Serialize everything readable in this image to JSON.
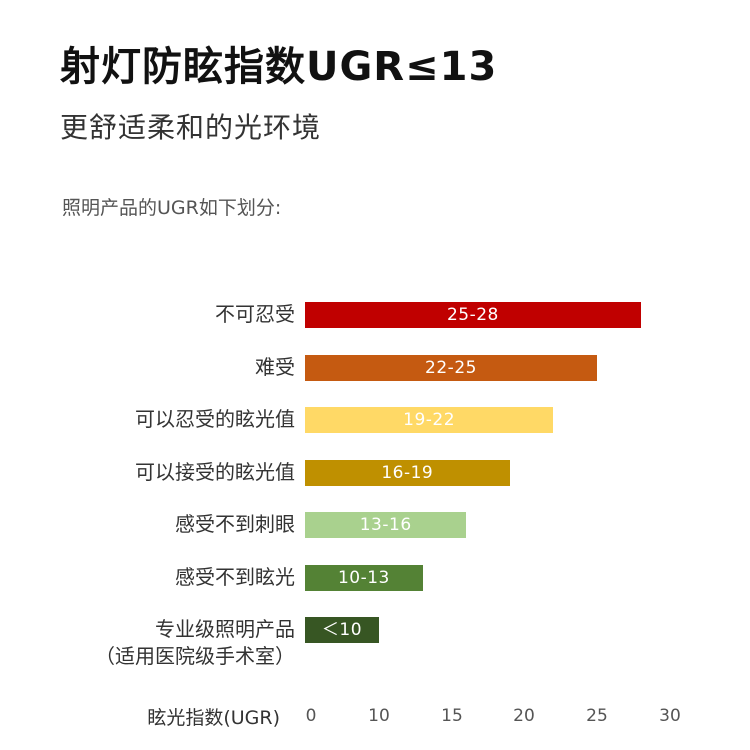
{
  "header": {
    "title": "射灯防眩指数UGR≤13",
    "subtitle": "更舒适柔和的光环境",
    "intro": "照明产品的UGR如下划分:"
  },
  "chart_data": {
    "type": "bar",
    "orientation": "horizontal",
    "title": "",
    "xlabel": "眩光指数(UGR)",
    "ylabel": "",
    "xlim": [
      0,
      30
    ],
    "x_ticks": [
      "0",
      "10",
      "15",
      "20",
      "25",
      "30"
    ],
    "x_tick_values": [
      0,
      10,
      15,
      20,
      25,
      30
    ],
    "grid": false,
    "legend": "none",
    "bars": [
      {
        "category": "不可忍受",
        "category_line2": "",
        "range_label": "25-28",
        "value": 28,
        "color": "#c00000"
      },
      {
        "category": "难受",
        "category_line2": "",
        "range_label": "22-25",
        "value": 25,
        "color": "#c55a11"
      },
      {
        "category": "可以忍受的眩光值",
        "category_line2": "",
        "range_label": "19-22",
        "value": 22,
        "color": "#ffd966"
      },
      {
        "category": "可以接受的眩光值",
        "category_line2": "",
        "range_label": "16-19",
        "value": 19,
        "color": "#bf9000"
      },
      {
        "category": "感受不到刺眼",
        "category_line2": "",
        "range_label": "13-16",
        "value": 16,
        "color": "#a9d18e"
      },
      {
        "category": "感受不到眩光",
        "category_line2": "",
        "range_label": "10-13",
        "value": 13,
        "color": "#548235"
      },
      {
        "category": "专业级照明产品",
        "category_line2": "（适用医院级手术室）",
        "range_label": "＜10",
        "value": 10,
        "color": "#375623"
      }
    ]
  }
}
